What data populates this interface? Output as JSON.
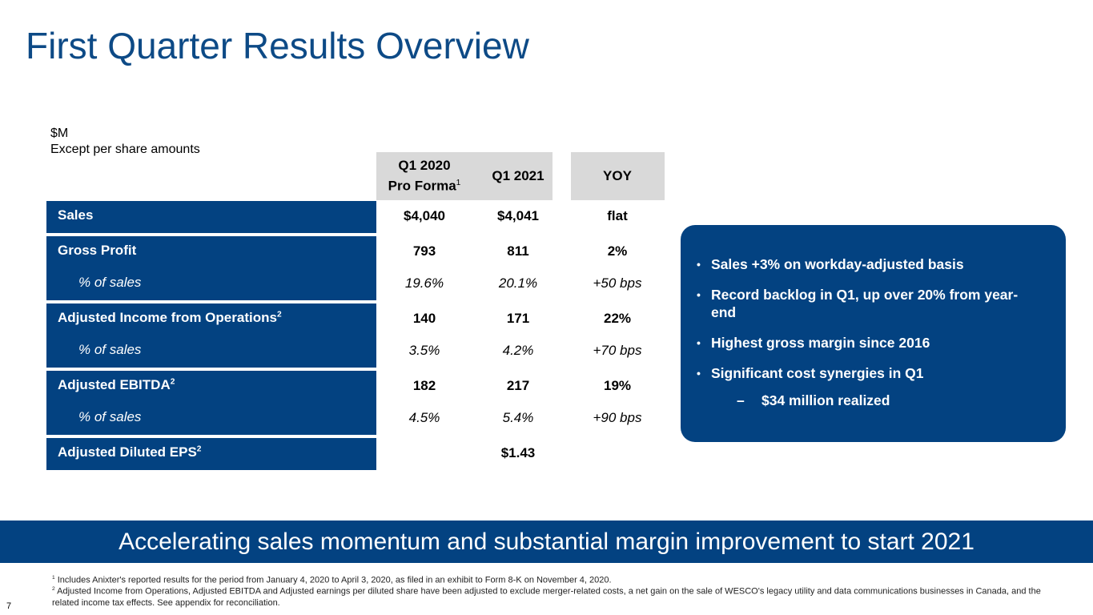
{
  "header": {
    "title": "First Quarter Results Overview"
  },
  "units": [
    "$M",
    "Except per share amounts"
  ],
  "table": {
    "columns": [
      {
        "label": [
          "Q1 2020",
          "Pro Forma"
        ],
        "note": "1"
      },
      {
        "label": [
          "Q1 2021"
        ]
      },
      {
        "label": [
          "YOY"
        ]
      }
    ],
    "groups": [
      {
        "label": "Sales",
        "cells": [
          "$4,040",
          "$4,041",
          "flat"
        ]
      },
      {
        "label": "Gross Profit",
        "cells": [
          "793",
          "811",
          "2%"
        ],
        "sub": {
          "label": "% of sales",
          "cells": [
            "19.6%",
            "20.1%",
            "+50 bps"
          ]
        }
      },
      {
        "label": "Adjusted Income from Operations",
        "note": "2",
        "cells": [
          "140",
          "171",
          "22%"
        ],
        "sub": {
          "label": "% of sales",
          "cells": [
            "3.5%",
            "4.2%",
            "+70 bps"
          ]
        }
      },
      {
        "label": "Adjusted EBITDA",
        "note": "2",
        "cells": [
          "182",
          "217",
          "19%"
        ],
        "sub": {
          "label": "% of sales",
          "cells": [
            "4.5%",
            "5.4%",
            "+90 bps"
          ]
        }
      },
      {
        "label": "Adjusted Diluted EPS",
        "note": "2",
        "cells": [
          null,
          "$1.43",
          null
        ]
      }
    ]
  },
  "callout": {
    "bullets": [
      {
        "text": "Sales +3% on workday-adjusted basis"
      },
      {
        "text": "Record backlog in Q1, up over 20% from year-end"
      },
      {
        "text": "Highest gross margin since 2016"
      },
      {
        "text": "Significant cost synergies in Q1",
        "subs": [
          "$34 million realized"
        ]
      }
    ]
  },
  "banner": "Accelerating sales momentum and substantial margin improvement to start 2021",
  "footnotes": [
    {
      "mark": "1",
      "text": "Includes Anixter's reported results for the period from January 4, 2020 to April 3, 2020, as filed in an exhibit to Form 8-K on November 4, 2020."
    },
    {
      "mark": "2",
      "text": "Adjusted Income from Operations, Adjusted EBITDA and Adjusted earnings per diluted share have been adjusted to exclude merger-related costs, a net gain on the sale of WESCO's legacy utility and data communications businesses in Canada, and the related income tax effects. See appendix for reconciliation."
    }
  ],
  "page_number": "7"
}
